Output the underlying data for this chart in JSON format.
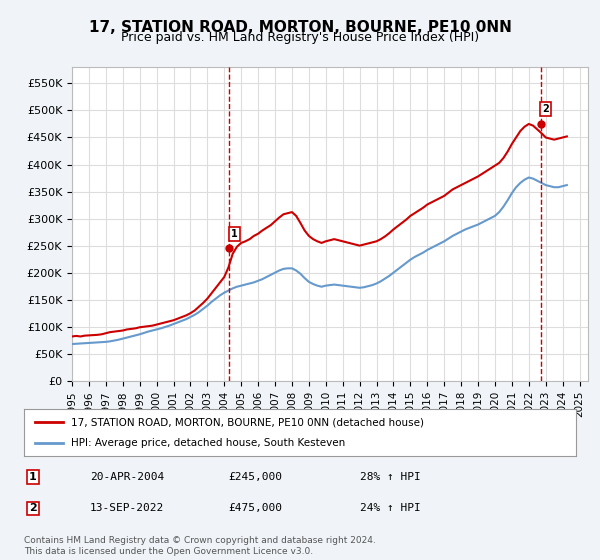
{
  "title": "17, STATION ROAD, MORTON, BOURNE, PE10 0NN",
  "subtitle": "Price paid vs. HM Land Registry's House Price Index (HPI)",
  "title_fontsize": 11,
  "subtitle_fontsize": 9,
  "ylabel_ticks": [
    "£0",
    "£50K",
    "£100K",
    "£150K",
    "£200K",
    "£250K",
    "£300K",
    "£350K",
    "£400K",
    "£450K",
    "£500K",
    "£550K"
  ],
  "ytick_values": [
    0,
    50000,
    100000,
    150000,
    200000,
    250000,
    300000,
    350000,
    400000,
    450000,
    500000,
    550000
  ],
  "ylim": [
    0,
    580000
  ],
  "xlim_start": 1995.0,
  "xlim_end": 2025.5,
  "xtick_years": [
    1995,
    1996,
    1997,
    1998,
    1999,
    2000,
    2001,
    2002,
    2003,
    2004,
    2005,
    2006,
    2007,
    2008,
    2009,
    2010,
    2011,
    2012,
    2013,
    2014,
    2015,
    2016,
    2017,
    2018,
    2019,
    2020,
    2021,
    2022,
    2023,
    2024,
    2025
  ],
  "red_color": "#cc0000",
  "blue_color": "#6699cc",
  "dashed_vline_color": "#cc0000",
  "marker1_x": 2004.3,
  "marker1_y": 245000,
  "marker2_x": 2022.7,
  "marker2_y": 475000,
  "legend_label_red": "17, STATION ROAD, MORTON, BOURNE, PE10 0NN (detached house)",
  "legend_label_blue": "HPI: Average price, detached house, South Kesteven",
  "annotation1_date": "20-APR-2004",
  "annotation1_price": "£245,000",
  "annotation1_hpi": "28% ↑ HPI",
  "annotation2_date": "13-SEP-2022",
  "annotation2_price": "£475,000",
  "annotation2_hpi": "24% ↑ HPI",
  "footer_text": "Contains HM Land Registry data © Crown copyright and database right 2024.\nThis data is licensed under the Open Government Licence v3.0.",
  "background_color": "#f0f4f8",
  "plot_bg_color": "#ffffff",
  "grid_color": "#dddddd",
  "red_data_x": [
    1995.0,
    1995.25,
    1995.5,
    1995.75,
    1996.0,
    1996.25,
    1996.5,
    1996.75,
    1997.0,
    1997.25,
    1997.5,
    1997.75,
    1998.0,
    1998.25,
    1998.5,
    1998.75,
    1999.0,
    1999.25,
    1999.5,
    1999.75,
    2000.0,
    2000.25,
    2000.5,
    2000.75,
    2001.0,
    2001.25,
    2001.5,
    2001.75,
    2002.0,
    2002.25,
    2002.5,
    2002.75,
    2003.0,
    2003.25,
    2003.5,
    2003.75,
    2004.0,
    2004.25,
    2004.5,
    2004.75,
    2005.0,
    2005.25,
    2005.5,
    2005.75,
    2006.0,
    2006.25,
    2006.5,
    2006.75,
    2007.0,
    2007.25,
    2007.5,
    2007.75,
    2008.0,
    2008.25,
    2008.5,
    2008.75,
    2009.0,
    2009.25,
    2009.5,
    2009.75,
    2010.0,
    2010.25,
    2010.5,
    2010.75,
    2011.0,
    2011.25,
    2011.5,
    2011.75,
    2012.0,
    2012.25,
    2012.5,
    2012.75,
    2013.0,
    2013.25,
    2013.5,
    2013.75,
    2014.0,
    2014.25,
    2014.5,
    2014.75,
    2015.0,
    2015.25,
    2015.5,
    2015.75,
    2016.0,
    2016.25,
    2016.5,
    2016.75,
    2017.0,
    2017.25,
    2017.5,
    2017.75,
    2018.0,
    2018.25,
    2018.5,
    2018.75,
    2019.0,
    2019.25,
    2019.5,
    2019.75,
    2020.0,
    2020.25,
    2020.5,
    2020.75,
    2021.0,
    2021.25,
    2021.5,
    2021.75,
    2022.0,
    2022.25,
    2022.5,
    2022.75,
    2023.0,
    2023.25,
    2023.5,
    2023.75,
    2024.0,
    2024.25
  ],
  "red_data_y": [
    82000,
    83000,
    82000,
    83500,
    84000,
    84500,
    85000,
    86000,
    88000,
    90000,
    91000,
    92000,
    93000,
    95000,
    96000,
    97000,
    99000,
    100000,
    101000,
    102000,
    104000,
    106000,
    108000,
    110000,
    112000,
    115000,
    118000,
    121000,
    125000,
    130000,
    137000,
    144000,
    152000,
    162000,
    172000,
    182000,
    192000,
    210000,
    235000,
    248000,
    255000,
    258000,
    262000,
    268000,
    272000,
    278000,
    283000,
    288000,
    295000,
    302000,
    308000,
    310000,
    312000,
    305000,
    292000,
    278000,
    268000,
    262000,
    258000,
    255000,
    258000,
    260000,
    262000,
    260000,
    258000,
    256000,
    254000,
    252000,
    250000,
    252000,
    254000,
    256000,
    258000,
    262000,
    267000,
    273000,
    280000,
    286000,
    292000,
    298000,
    305000,
    310000,
    315000,
    320000,
    326000,
    330000,
    334000,
    338000,
    342000,
    348000,
    354000,
    358000,
    362000,
    366000,
    370000,
    374000,
    378000,
    383000,
    388000,
    393000,
    398000,
    403000,
    412000,
    424000,
    438000,
    450000,
    462000,
    470000,
    475000,
    472000,
    465000,
    458000,
    450000,
    448000,
    446000,
    448000,
    450000,
    452000
  ],
  "blue_data_x": [
    1995.0,
    1995.25,
    1995.5,
    1995.75,
    1996.0,
    1996.25,
    1996.5,
    1996.75,
    1997.0,
    1997.25,
    1997.5,
    1997.75,
    1998.0,
    1998.25,
    1998.5,
    1998.75,
    1999.0,
    1999.25,
    1999.5,
    1999.75,
    2000.0,
    2000.25,
    2000.5,
    2000.75,
    2001.0,
    2001.25,
    2001.5,
    2001.75,
    2002.0,
    2002.25,
    2002.5,
    2002.75,
    2003.0,
    2003.25,
    2003.5,
    2003.75,
    2004.0,
    2004.25,
    2004.5,
    2004.75,
    2005.0,
    2005.25,
    2005.5,
    2005.75,
    2006.0,
    2006.25,
    2006.5,
    2006.75,
    2007.0,
    2007.25,
    2007.5,
    2007.75,
    2008.0,
    2008.25,
    2008.5,
    2008.75,
    2009.0,
    2009.25,
    2009.5,
    2009.75,
    2010.0,
    2010.25,
    2010.5,
    2010.75,
    2011.0,
    2011.25,
    2011.5,
    2011.75,
    2012.0,
    2012.25,
    2012.5,
    2012.75,
    2013.0,
    2013.25,
    2013.5,
    2013.75,
    2014.0,
    2014.25,
    2014.5,
    2014.75,
    2015.0,
    2015.25,
    2015.5,
    2015.75,
    2016.0,
    2016.25,
    2016.5,
    2016.75,
    2017.0,
    2017.25,
    2017.5,
    2017.75,
    2018.0,
    2018.25,
    2018.5,
    2018.75,
    2019.0,
    2019.25,
    2019.5,
    2019.75,
    2020.0,
    2020.25,
    2020.5,
    2020.75,
    2021.0,
    2021.25,
    2021.5,
    2021.75,
    2022.0,
    2022.25,
    2022.5,
    2022.75,
    2023.0,
    2023.25,
    2023.5,
    2023.75,
    2024.0,
    2024.25
  ],
  "blue_data_y": [
    68000,
    68500,
    69000,
    69500,
    70000,
    70500,
    71000,
    71500,
    72000,
    73000,
    74500,
    76000,
    78000,
    80000,
    82000,
    84000,
    86000,
    88500,
    91000,
    93000,
    95000,
    97000,
    99500,
    102000,
    105000,
    108000,
    111000,
    114000,
    118000,
    122000,
    127000,
    133000,
    139000,
    146000,
    152000,
    158000,
    163000,
    167000,
    171000,
    174000,
    176000,
    178000,
    180000,
    182000,
    185000,
    188000,
    192000,
    196000,
    200000,
    204000,
    207000,
    208000,
    208000,
    204000,
    198000,
    190000,
    183000,
    179000,
    176000,
    174000,
    176000,
    177000,
    178000,
    177000,
    176000,
    175000,
    174000,
    173000,
    172000,
    173000,
    175000,
    177000,
    180000,
    184000,
    189000,
    194000,
    200000,
    206000,
    212000,
    218000,
    224000,
    229000,
    233000,
    237000,
    242000,
    246000,
    250000,
    254000,
    258000,
    263000,
    268000,
    272000,
    276000,
    280000,
    283000,
    286000,
    289000,
    293000,
    297000,
    301000,
    305000,
    312000,
    322000,
    334000,
    347000,
    358000,
    366000,
    372000,
    376000,
    374000,
    370000,
    366000,
    362000,
    360000,
    358000,
    358000,
    360000,
    362000
  ]
}
